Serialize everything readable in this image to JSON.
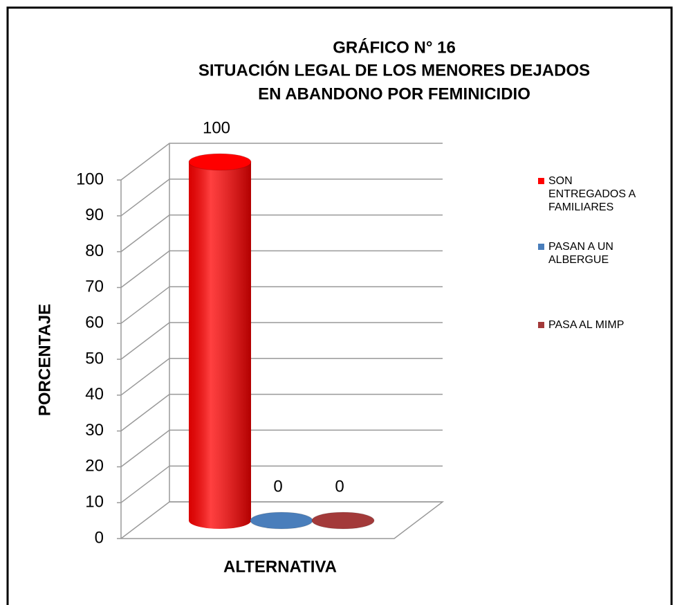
{
  "chart_data": {
    "type": "bar3d",
    "title": [
      "GRÁFICO N° 16",
      "SITUACIÓN LEGAL DE LOS MENORES DEJADOS",
      "EN ABANDONO POR FEMINICIDIO"
    ],
    "y_label": "PORCENTAJE",
    "x_label": "ALTERNATIVA",
    "categories": [
      null
    ],
    "series": [
      {
        "name": "SON ENTREGADOS A FAMILIARES",
        "color": "#ff0000",
        "values": [
          100
        ]
      },
      {
        "name": "PASAN A UN ALBERGUE",
        "color": "#4a7ebb",
        "values": [
          0
        ]
      },
      {
        "name": "PASA AL MIMP",
        "color": "#a33a3a",
        "values": [
          0
        ]
      }
    ],
    "ylim": [
      0,
      100
    ],
    "yticks": [
      0,
      10,
      20,
      30,
      40,
      50,
      60,
      70,
      80,
      90,
      100
    ],
    "grid": true,
    "legend": "right"
  }
}
